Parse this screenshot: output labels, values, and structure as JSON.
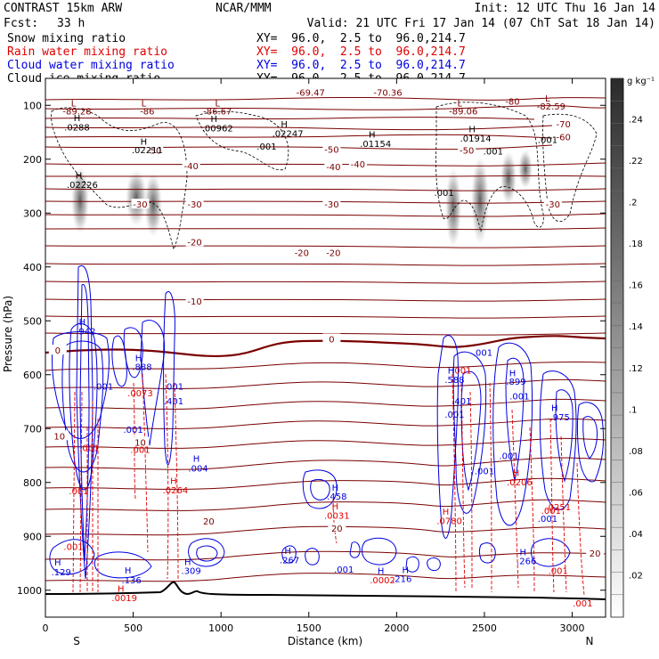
{
  "header": {
    "left_title": "CONTRAST 15km ARW",
    "fcst_label": "Fcst:",
    "fcst_value": "33 h",
    "center_title": "NCAR/MMM",
    "init": "Init: 12 UTC Thu 16 Jan 14",
    "valid": "Valid: 21 UTC Fri 17 Jan 14 (07 ChT Sat 18 Jan 14)"
  },
  "legend": [
    {
      "label": "Snow mixing ratio",
      "xy": "XY=  96.0,  2.5 to  96.0,214.7",
      "color": "#000000"
    },
    {
      "label": "Rain water mixing ratio",
      "xy": "XY=  96.0,  2.5 to  96.0,214.7",
      "color": "#e00000"
    },
    {
      "label": "Cloud water mixing ratio",
      "xy": "XY=  96.0,  2.5 to  96.0,214.7",
      "color": "#0000e0"
    },
    {
      "label": "Cloud ice mixing ratio",
      "xy": "XY=  96.0,  2.5 to  96.0,214.7",
      "color": "#000000"
    }
  ],
  "colors": {
    "temperature": "#7a0000",
    "cloud_water": "#0000e0",
    "rain": "#e00000",
    "snow": "#000000",
    "terrain": "#000000"
  },
  "colorbar": {
    "unit": "g kg⁻¹",
    "labels": [
      ".24",
      ".22",
      ".2",
      ".18",
      ".16",
      ".14",
      ".12",
      ".1",
      ".08",
      ".06",
      ".04",
      ".02"
    ]
  },
  "chart_data": {
    "type": "cross-section",
    "xlabel": "Distance (km)",
    "ylabel": "Pressure (hPa)",
    "xlim": [
      0,
      3190
    ],
    "ylim": [
      1050,
      50
    ],
    "x_ticks": [
      0,
      500,
      1000,
      1500,
      2000,
      2500,
      3000
    ],
    "y_ticks": [
      100,
      200,
      300,
      400,
      500,
      600,
      700,
      800,
      900,
      1000
    ],
    "end_labels": {
      "left": "S",
      "right": "N"
    },
    "isotherm_labels": [
      {
        "text": "-50",
        "x": 620,
        "p": 185
      },
      {
        "text": "-50",
        "x": 1630,
        "p": 183
      },
      {
        "text": "-50",
        "x": 2400,
        "p": 185
      },
      {
        "text": "-40",
        "x": 830,
        "p": 214
      },
      {
        "text": "-40",
        "x": 1640,
        "p": 215
      },
      {
        "text": "-40",
        "x": 1780,
        "p": 210
      },
      {
        "text": "-30",
        "x": 540,
        "p": 285
      },
      {
        "text": "-30",
        "x": 850,
        "p": 285
      },
      {
        "text": "-30",
        "x": 1630,
        "p": 285
      },
      {
        "text": "-30",
        "x": 2890,
        "p": 285
      },
      {
        "text": "-20",
        "x": 850,
        "p": 355
      },
      {
        "text": "-20",
        "x": 1460,
        "p": 375
      },
      {
        "text": "-20",
        "x": 1640,
        "p": 375
      },
      {
        "text": "-10",
        "x": 850,
        "p": 465
      },
      {
        "text": "0",
        "x": 70,
        "p": 556
      },
      {
        "text": "0",
        "x": 1630,
        "p": 535
      },
      {
        "text": "10",
        "x": 80,
        "p": 715
      },
      {
        "text": "10",
        "x": 540,
        "p": 727
      },
      {
        "text": "20",
        "x": 930,
        "p": 873
      },
      {
        "text": "20",
        "x": 1660,
        "p": 886
      },
      {
        "text": "20",
        "x": 3130,
        "p": 933
      }
    ],
    "max_labels": [
      {
        "text": "-69.47",
        "x": 1510,
        "p": 77,
        "color": "#7a0000"
      },
      {
        "text": "-70.36",
        "x": 1950,
        "p": 77,
        "color": "#7a0000"
      },
      {
        "text": "-89.28",
        "x": 180,
        "p": 112,
        "color": "#7a0000"
      },
      {
        "text": "-86",
        "x": 580,
        "p": 112,
        "color": "#7a0000"
      },
      {
        "text": "-86.67",
        "x": 980,
        "p": 112,
        "color": "#7a0000"
      },
      {
        "text": "-89.06",
        "x": 2380,
        "p": 112,
        "color": "#7a0000"
      },
      {
        "text": "-82.59",
        "x": 2880,
        "p": 103,
        "color": "#7a0000"
      },
      {
        "text": "-80",
        "x": 2660,
        "p": 94,
        "color": "#7a0000"
      },
      {
        "text": "-70",
        "x": 2950,
        "p": 136,
        "color": "#7a0000"
      },
      {
        "text": "-60",
        "x": 2950,
        "p": 160,
        "color": "#7a0000"
      },
      {
        "text": ".0288",
        "x": 180,
        "p": 142,
        "color": "#000000"
      },
      {
        "text": ".00962",
        "x": 980,
        "p": 143,
        "color": "#000000"
      },
      {
        "text": ".02247",
        "x": 1380,
        "p": 153,
        "color": "#000000"
      },
      {
        "text": ".02211",
        "x": 580,
        "p": 184,
        "color": "#000000"
      },
      {
        "text": ".001",
        "x": 1260,
        "p": 177,
        "color": "#000000"
      },
      {
        "text": ".01154",
        "x": 1880,
        "p": 172,
        "color": "#000000"
      },
      {
        "text": ".01914",
        "x": 2450,
        "p": 162,
        "color": "#000000"
      },
      {
        "text": ".001",
        "x": 2860,
        "p": 165,
        "color": "#000000"
      },
      {
        "text": ".001",
        "x": 2550,
        "p": 186,
        "color": "#000000"
      },
      {
        "text": ".02226",
        "x": 210,
        "p": 248,
        "color": "#000000"
      },
      {
        "text": ".001",
        "x": 2270,
        "p": 263,
        "color": "#000000"
      },
      {
        "text": ".942",
        "x": 230,
        "p": 520,
        "color": "#0000e0"
      },
      {
        "text": ".888",
        "x": 550,
        "p": 586,
        "color": "#0000e0"
      },
      {
        "text": ".001",
        "x": 330,
        "p": 623,
        "color": "#0000e0"
      },
      {
        "text": ".001",
        "x": 730,
        "p": 623,
        "color": "#0000e0"
      },
      {
        "text": ".401",
        "x": 730,
        "p": 650,
        "color": "#0000e0"
      },
      {
        "text": ".001",
        "x": 500,
        "p": 703,
        "color": "#0000e0"
      },
      {
        "text": ".004",
        "x": 870,
        "p": 775,
        "color": "#0000e0"
      },
      {
        "text": ".0073",
        "x": 540,
        "p": 635,
        "color": "#e00000"
      },
      {
        "text": ".001",
        "x": 540,
        "p": 740,
        "color": "#e00000"
      },
      {
        "text": ".0264",
        "x": 740,
        "p": 815,
        "color": "#e00000"
      },
      {
        "text": ".001",
        "x": 190,
        "p": 817,
        "color": "#e00000"
      },
      {
        "text": ".001",
        "x": 250,
        "p": 737,
        "color": "#e00000"
      },
      {
        "text": ".458",
        "x": 1660,
        "p": 827,
        "color": "#0000e0"
      },
      {
        "text": ".0031",
        "x": 1660,
        "p": 862,
        "color": "#e00000"
      },
      {
        "text": ".267",
        "x": 1390,
        "p": 945,
        "color": "#0000e0"
      },
      {
        "text": ".001",
        "x": 1700,
        "p": 962,
        "color": "#0000e0"
      },
      {
        "text": ".0002",
        "x": 1920,
        "p": 982,
        "color": "#e00000"
      },
      {
        "text": ".216",
        "x": 2030,
        "p": 980,
        "color": "#0000e0"
      },
      {
        "text": ".309",
        "x": 830,
        "p": 965,
        "color": "#0000e0"
      },
      {
        "text": ".136",
        "x": 490,
        "p": 982,
        "color": "#0000e0"
      },
      {
        "text": ".129",
        "x": 90,
        "p": 967,
        "color": "#0000e0"
      },
      {
        "text": ".0019",
        "x": 450,
        "p": 1015,
        "color": "#e00000"
      },
      {
        "text": ".001",
        "x": 160,
        "p": 920,
        "color": "#e00000"
      },
      {
        "text": ".588",
        "x": 2330,
        "p": 610,
        "color": "#0000e0"
      },
      {
        "text": ".401",
        "x": 2370,
        "p": 650,
        "color": "#0000e0"
      },
      {
        "text": ".001",
        "x": 2490,
        "p": 560,
        "color": "#0000e0"
      },
      {
        "text": ".001",
        "x": 2330,
        "p": 675,
        "color": "#0000e0"
      },
      {
        "text": ".001",
        "x": 2640,
        "p": 752,
        "color": "#0000e0"
      },
      {
        "text": ".001",
        "x": 2500,
        "p": 780,
        "color": "#0000e0"
      },
      {
        "text": ".899",
        "x": 2680,
        "p": 614,
        "color": "#0000e0"
      },
      {
        "text": ".001",
        "x": 2700,
        "p": 641,
        "color": "#0000e0"
      },
      {
        "text": ".975",
        "x": 2930,
        "p": 680,
        "color": "#0000e0"
      },
      {
        "text": ".001",
        "x": 2370,
        "p": 593,
        "color": "#e00000"
      },
      {
        "text": ".0206",
        "x": 2700,
        "p": 800,
        "color": "#e00000"
      },
      {
        "text": ".0780",
        "x": 2300,
        "p": 872,
        "color": "#e00000"
      },
      {
        "text": ".001",
        "x": 2880,
        "p": 853,
        "color": "#e00000"
      },
      {
        "text": ".001",
        "x": 2920,
        "p": 965,
        "color": "#e00000"
      },
      {
        "text": ".001",
        "x": 3060,
        "p": 1025,
        "color": "#e00000"
      },
      {
        "text": ".001",
        "x": 2860,
        "p": 868,
        "color": "#0000e0"
      },
      {
        "text": ".0251",
        "x": 2920,
        "p": 847,
        "color": "#e00000"
      },
      {
        "text": ".266",
        "x": 2740,
        "p": 947,
        "color": "#0000e0"
      }
    ],
    "extrema_markers": [
      {
        "text": "L",
        "x": 160,
        "p": 97,
        "color": "#7a0000"
      },
      {
        "text": "L",
        "x": 560,
        "p": 97,
        "color": "#7a0000"
      },
      {
        "text": "L",
        "x": 980,
        "p": 97,
        "color": "#7a0000"
      },
      {
        "text": "L",
        "x": 2360,
        "p": 97,
        "color": "#7a0000"
      },
      {
        "text": "L",
        "x": 2860,
        "p": 88,
        "color": "#7a0000"
      },
      {
        "text": "H",
        "x": 180,
        "p": 124,
        "color": "#000000"
      },
      {
        "text": "H",
        "x": 960,
        "p": 126,
        "color": "#000000"
      },
      {
        "text": "H",
        "x": 1360,
        "p": 136,
        "color": "#000000"
      },
      {
        "text": "H",
        "x": 560,
        "p": 168,
        "color": "#000000"
      },
      {
        "text": "H",
        "x": 1860,
        "p": 155,
        "color": "#000000"
      },
      {
        "text": "H",
        "x": 2430,
        "p": 145,
        "color": "#000000"
      },
      {
        "text": "H",
        "x": 190,
        "p": 231,
        "color": "#000000"
      },
      {
        "text": "H",
        "x": 210,
        "p": 503,
        "color": "#0000e0"
      },
      {
        "text": "H",
        "x": 530,
        "p": 570,
        "color": "#0000e0"
      },
      {
        "text": "H",
        "x": 860,
        "p": 757,
        "color": "#0000e0"
      },
      {
        "text": "H",
        "x": 1650,
        "p": 810,
        "color": "#0000e0"
      },
      {
        "text": "H",
        "x": 1380,
        "p": 928,
        "color": "#0000e0"
      },
      {
        "text": "H",
        "x": 810,
        "p": 948,
        "color": "#0000e0"
      },
      {
        "text": "H",
        "x": 470,
        "p": 964,
        "color": "#0000e0"
      },
      {
        "text": "H",
        "x": 70,
        "p": 949,
        "color": "#0000e0"
      },
      {
        "text": "H",
        "x": 1910,
        "p": 965,
        "color": "#0000e0"
      },
      {
        "text": "H",
        "x": 2050,
        "p": 963,
        "color": "#0000e0"
      },
      {
        "text": "H",
        "x": 2310,
        "p": 593,
        "color": "#0000e0"
      },
      {
        "text": "H",
        "x": 2660,
        "p": 598,
        "color": "#0000e0"
      },
      {
        "text": "H",
        "x": 2900,
        "p": 662,
        "color": "#0000e0"
      },
      {
        "text": "H",
        "x": 2720,
        "p": 930,
        "color": "#0000e0"
      },
      {
        "text": "H",
        "x": 1650,
        "p": 845,
        "color": "#e00000"
      },
      {
        "text": "H",
        "x": 2280,
        "p": 855,
        "color": "#e00000"
      },
      {
        "text": "H",
        "x": 430,
        "p": 998,
        "color": "#e00000"
      },
      {
        "text": "H",
        "x": 2680,
        "p": 783,
        "color": "#e00000"
      },
      {
        "text": "H",
        "x": 730,
        "p": 798,
        "color": "#e00000"
      }
    ]
  }
}
